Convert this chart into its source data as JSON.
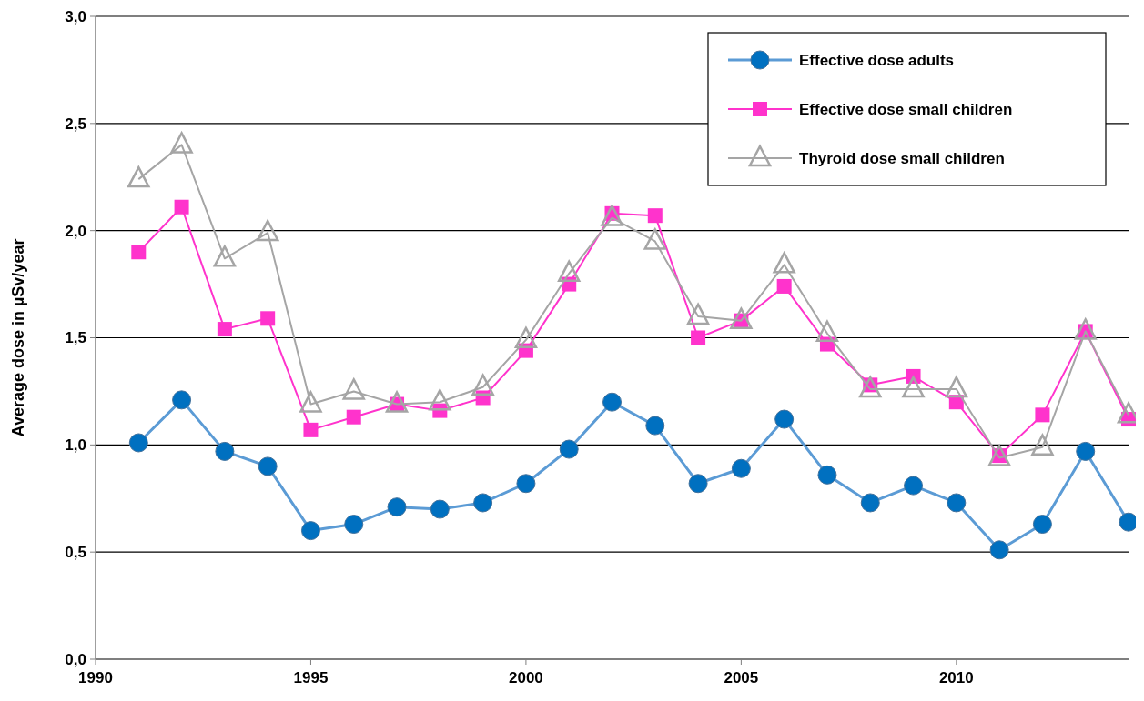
{
  "chart_data": {
    "type": "line",
    "ylabel": "Average dose in µSv/year",
    "x": [
      1991,
      1992,
      1993,
      1994,
      1995,
      1996,
      1997,
      1998,
      1999,
      2000,
      2001,
      2002,
      2003,
      2004,
      2005,
      2006,
      2007,
      2008,
      2009,
      2010,
      2011,
      2012,
      2013,
      2014
    ],
    "series": [
      {
        "name": "Effective dose adults",
        "color": "#5b9bd5",
        "marker": "circle",
        "values": [
          1.01,
          1.21,
          0.97,
          0.9,
          0.6,
          0.63,
          0.71,
          0.7,
          0.73,
          0.82,
          0.98,
          1.2,
          1.09,
          0.82,
          0.89,
          1.12,
          0.86,
          0.73,
          0.81,
          0.73,
          0.51,
          0.63,
          0.97,
          0.64
        ]
      },
      {
        "name": "Effective dose small children",
        "color": "#ff33cc",
        "marker": "square",
        "values": [
          1.9,
          2.11,
          1.54,
          1.59,
          1.07,
          1.13,
          1.19,
          1.16,
          1.22,
          1.44,
          1.75,
          2.08,
          2.07,
          1.5,
          1.58,
          1.74,
          1.47,
          1.28,
          1.32,
          1.2,
          0.95,
          1.14,
          1.53,
          1.12
        ]
      },
      {
        "name": "Thyroid dose small children",
        "color": "#a5a5a5",
        "marker": "triangle",
        "values": [
          2.24,
          2.4,
          1.87,
          1.99,
          1.19,
          1.25,
          1.19,
          1.2,
          1.27,
          1.49,
          1.8,
          2.06,
          1.95,
          1.6,
          1.58,
          1.84,
          1.52,
          1.26,
          1.26,
          1.26,
          0.94,
          0.99,
          1.53,
          1.14
        ]
      }
    ],
    "xlim": [
      1990,
      2014
    ],
    "xticks": [
      1990,
      1995,
      2000,
      2005,
      2010
    ],
    "ylim": [
      0,
      3
    ],
    "yticks": [
      {
        "value": 0,
        "label": "0,0"
      },
      {
        "value": 0.5,
        "label": "0,5"
      },
      {
        "value": 1,
        "label": "1,0"
      },
      {
        "value": 1.5,
        "label": "1,5"
      },
      {
        "value": 2,
        "label": "2,0"
      },
      {
        "value": 2.5,
        "label": "2,5"
      },
      {
        "value": 3,
        "label": "3,0"
      }
    ],
    "grid": "y",
    "legend": "top right",
    "line_style": "solid"
  }
}
